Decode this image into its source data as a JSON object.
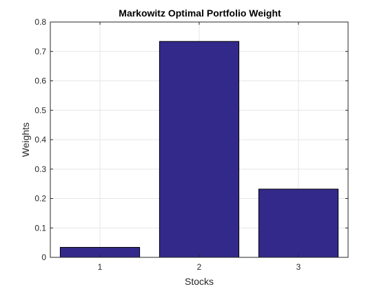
{
  "chart_data": {
    "type": "bar",
    "title": "Markowitz Optimal Portfolio Weight",
    "xlabel": "Stocks",
    "ylabel": "Weights",
    "categories": [
      "1",
      "2",
      "3"
    ],
    "values": [
      0.034,
      0.734,
      0.232
    ],
    "ylim": [
      0,
      0.8
    ],
    "yticks": [
      "0",
      "0.1",
      "0.2",
      "0.3",
      "0.4",
      "0.5",
      "0.6",
      "0.7",
      "0.8"
    ],
    "grid": true,
    "bar_color": "#33298a",
    "bar_edge_color": "#000000"
  }
}
